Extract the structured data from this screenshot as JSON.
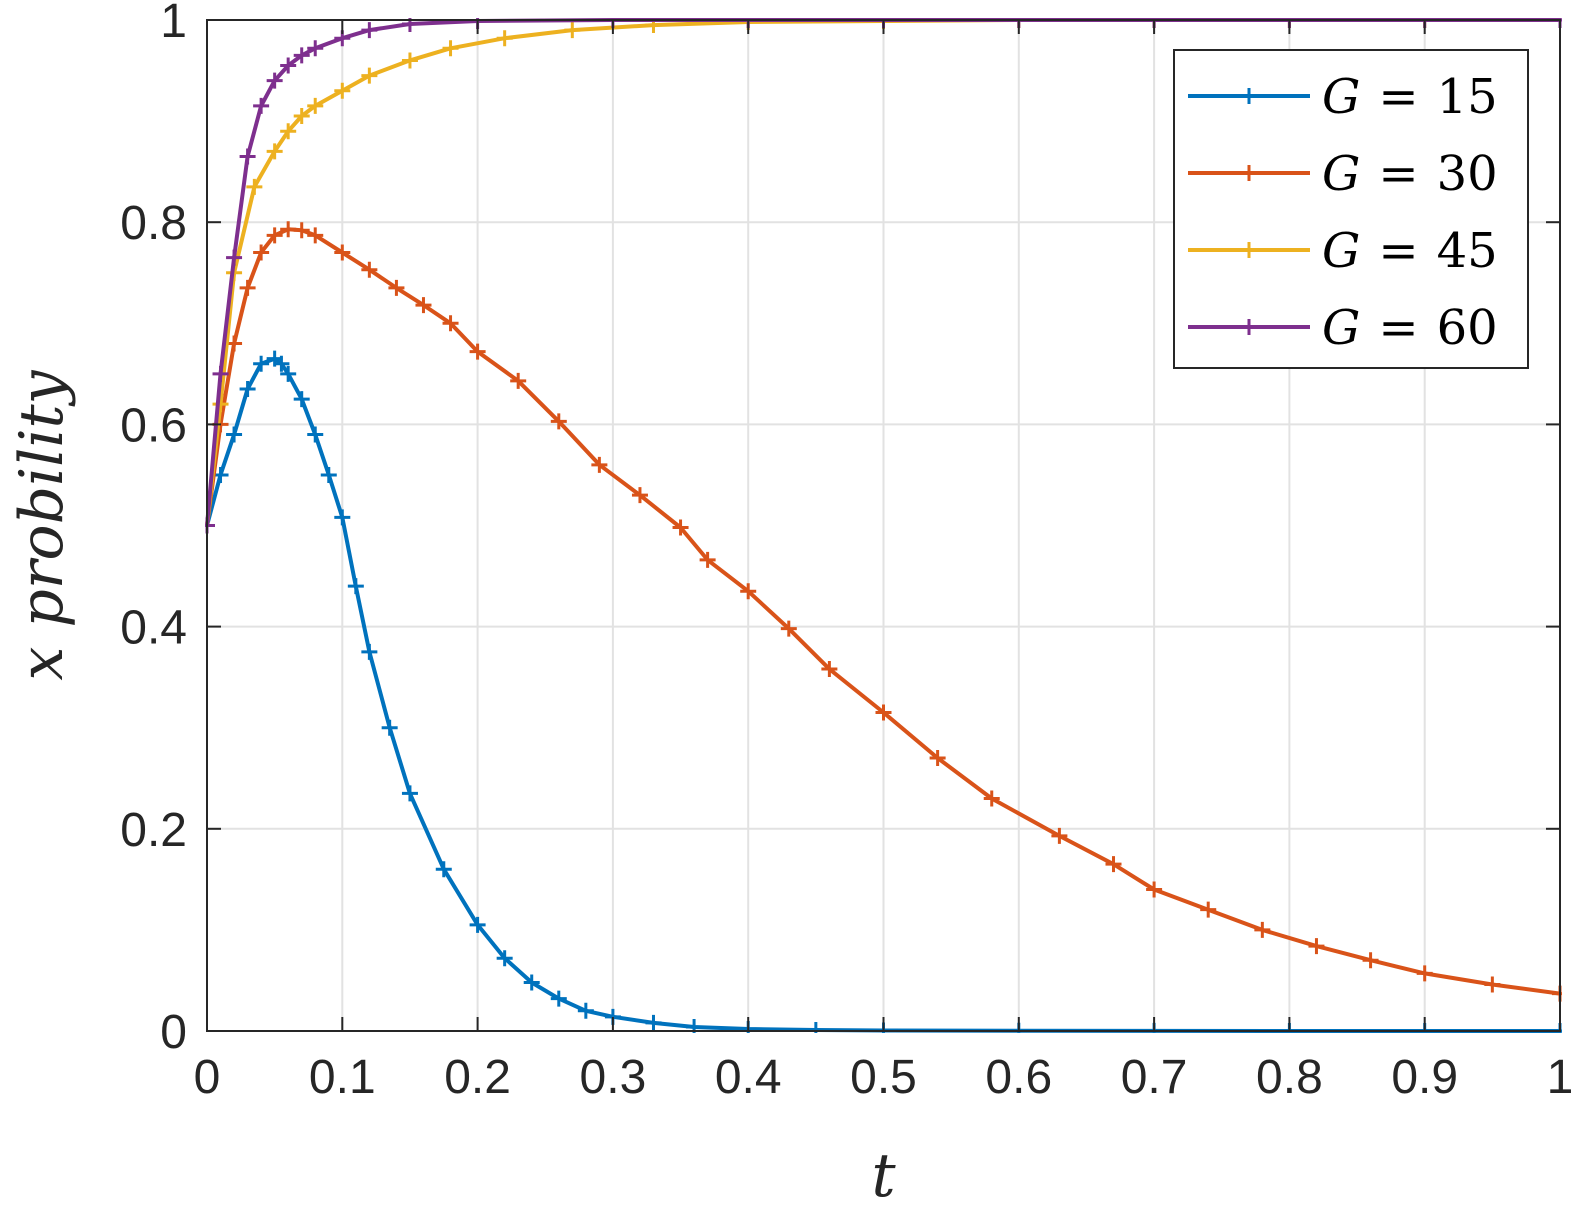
{
  "chart_data": {
    "type": "line",
    "title": "",
    "xlabel": "t",
    "ylabel": "x probility",
    "xlim": [
      0,
      1
    ],
    "ylim": [
      0,
      1
    ],
    "xticks": [
      "0",
      "0.1",
      "0.2",
      "0.3",
      "0.4",
      "0.5",
      "0.6",
      "0.7",
      "0.8",
      "0.9",
      "1"
    ],
    "yticks": [
      "0",
      "0.2",
      "0.4",
      "0.6",
      "0.8",
      "1"
    ],
    "grid": true,
    "legend": "top-right",
    "marker": "+",
    "series": [
      {
        "name": "G = 15",
        "label_var": "G",
        "label_value": "15",
        "color": "#0072BD",
        "points": [
          [
            0,
            0.5
          ],
          [
            0.01,
            0.55
          ],
          [
            0.02,
            0.59
          ],
          [
            0.03,
            0.635
          ],
          [
            0.04,
            0.66
          ],
          [
            0.05,
            0.665
          ],
          [
            0.055,
            0.66
          ],
          [
            0.06,
            0.65
          ],
          [
            0.07,
            0.625
          ],
          [
            0.08,
            0.59
          ],
          [
            0.09,
            0.55
          ],
          [
            0.1,
            0.508
          ],
          [
            0.11,
            0.44
          ],
          [
            0.12,
            0.375
          ],
          [
            0.135,
            0.3
          ],
          [
            0.15,
            0.235
          ],
          [
            0.175,
            0.16
          ],
          [
            0.2,
            0.105
          ],
          [
            0.22,
            0.072
          ],
          [
            0.24,
            0.048
          ],
          [
            0.26,
            0.032
          ],
          [
            0.28,
            0.02
          ],
          [
            0.3,
            0.014
          ],
          [
            0.33,
            0.008
          ],
          [
            0.36,
            0.004
          ],
          [
            0.4,
            0.002
          ],
          [
            0.45,
            0.001
          ],
          [
            0.5,
            0.0005
          ],
          [
            0.6,
            0.0002
          ],
          [
            0.7,
            0.0001
          ],
          [
            0.8,
            0
          ],
          [
            0.9,
            0
          ],
          [
            1,
            0
          ]
        ]
      },
      {
        "name": "G = 30",
        "label_var": "G",
        "label_value": "30",
        "color": "#D95319",
        "points": [
          [
            0,
            0.5
          ],
          [
            0.01,
            0.6
          ],
          [
            0.02,
            0.68
          ],
          [
            0.03,
            0.735
          ],
          [
            0.04,
            0.77
          ],
          [
            0.05,
            0.787
          ],
          [
            0.06,
            0.793
          ],
          [
            0.07,
            0.792
          ],
          [
            0.08,
            0.787
          ],
          [
            0.1,
            0.77
          ],
          [
            0.12,
            0.753
          ],
          [
            0.14,
            0.735
          ],
          [
            0.16,
            0.718
          ],
          [
            0.18,
            0.7
          ],
          [
            0.2,
            0.672
          ],
          [
            0.23,
            0.643
          ],
          [
            0.26,
            0.603
          ],
          [
            0.29,
            0.56
          ],
          [
            0.32,
            0.53
          ],
          [
            0.35,
            0.498
          ],
          [
            0.37,
            0.466
          ],
          [
            0.4,
            0.435
          ],
          [
            0.43,
            0.398
          ],
          [
            0.46,
            0.358
          ],
          [
            0.5,
            0.315
          ],
          [
            0.54,
            0.27
          ],
          [
            0.58,
            0.23
          ],
          [
            0.63,
            0.193
          ],
          [
            0.67,
            0.165
          ],
          [
            0.7,
            0.14
          ],
          [
            0.74,
            0.12
          ],
          [
            0.78,
            0.1
          ],
          [
            0.82,
            0.084
          ],
          [
            0.86,
            0.07
          ],
          [
            0.9,
            0.057
          ],
          [
            0.95,
            0.046
          ],
          [
            1,
            0.037
          ]
        ]
      },
      {
        "name": "G = 45",
        "label_var": "G",
        "label_value": "45",
        "color": "#EDB120",
        "points": [
          [
            0,
            0.5
          ],
          [
            0.01,
            0.62
          ],
          [
            0.02,
            0.75
          ],
          [
            0.035,
            0.835
          ],
          [
            0.05,
            0.87
          ],
          [
            0.06,
            0.89
          ],
          [
            0.07,
            0.905
          ],
          [
            0.08,
            0.915
          ],
          [
            0.1,
            0.93
          ],
          [
            0.12,
            0.945
          ],
          [
            0.15,
            0.96
          ],
          [
            0.18,
            0.972
          ],
          [
            0.22,
            0.982
          ],
          [
            0.27,
            0.99
          ],
          [
            0.33,
            0.995
          ],
          [
            0.4,
            0.998
          ],
          [
            0.5,
            0.999
          ],
          [
            0.6,
            1
          ],
          [
            0.7,
            1
          ],
          [
            0.8,
            1
          ],
          [
            0.9,
            1
          ],
          [
            1,
            1
          ]
        ]
      },
      {
        "name": "G = 60",
        "label_var": "G",
        "label_value": "60",
        "color": "#7E2F8E",
        "points": [
          [
            0,
            0.5
          ],
          [
            0.01,
            0.65
          ],
          [
            0.02,
            0.765
          ],
          [
            0.03,
            0.865
          ],
          [
            0.04,
            0.915
          ],
          [
            0.05,
            0.94
          ],
          [
            0.06,
            0.955
          ],
          [
            0.07,
            0.965
          ],
          [
            0.08,
            0.972
          ],
          [
            0.1,
            0.982
          ],
          [
            0.12,
            0.99
          ],
          [
            0.15,
            0.996
          ],
          [
            0.2,
            0.999
          ],
          [
            0.3,
            1
          ],
          [
            0.4,
            1
          ],
          [
            0.5,
            1
          ],
          [
            0.6,
            1
          ],
          [
            0.7,
            1
          ],
          [
            0.8,
            1
          ],
          [
            0.9,
            1
          ],
          [
            1,
            1
          ]
        ]
      }
    ]
  }
}
